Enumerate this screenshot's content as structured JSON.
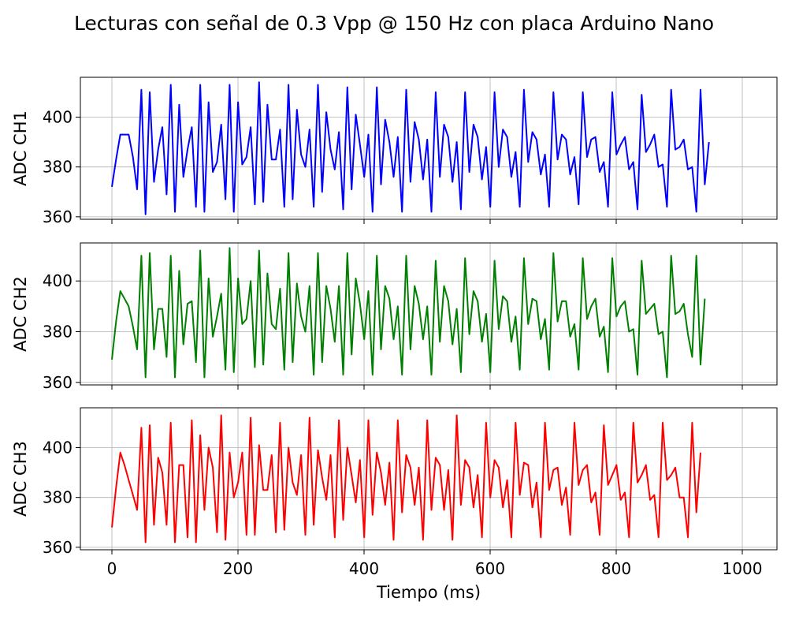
{
  "title": "Lecturas con señal de 0.3 Vpp @ 150 Hz con placa Arduino Nano",
  "chart_data": {
    "type": "line",
    "title": "Lecturas con señal de 0.3 Vpp @ 150 Hz con placa Arduino Nano",
    "xlabel": "Tiempo (ms)",
    "xlim": [
      -50,
      1055
    ],
    "xticks": [
      0,
      200,
      400,
      600,
      800,
      1000
    ],
    "x_step_ms": 6.67,
    "grid": true,
    "panels": [
      {
        "ylabel": "ADC CH1",
        "color": "#0000ff",
        "ylim": [
          359,
          416
        ],
        "yticks": [
          360,
          380,
          400
        ],
        "values": [
          372,
          383,
          393,
          393,
          393,
          384,
          371,
          411,
          361,
          410,
          374,
          387,
          396,
          369,
          413,
          362,
          405,
          376,
          387,
          396,
          364,
          413,
          362,
          406,
          378,
          382,
          397,
          367,
          413,
          362,
          406,
          381,
          384,
          396,
          365,
          414,
          366,
          405,
          383,
          383,
          395,
          364,
          413,
          367,
          403,
          385,
          380,
          395,
          364,
          413,
          370,
          402,
          387,
          379,
          394,
          363,
          412,
          371,
          401,
          389,
          376,
          393,
          362,
          412,
          373,
          399,
          390,
          376,
          392,
          362,
          411,
          374,
          398,
          391,
          375,
          391,
          362,
          410,
          376,
          397,
          392,
          374,
          390,
          363,
          410,
          378,
          397,
          392,
          375,
          388,
          364,
          410,
          380,
          395,
          392,
          376,
          386,
          364,
          411,
          382,
          394,
          391,
          377,
          385,
          364,
          410,
          383,
          393,
          391,
          377,
          384,
          365,
          410,
          384,
          391,
          392,
          378,
          382,
          364,
          410,
          385,
          389,
          392,
          379,
          382,
          363,
          409,
          386,
          389,
          393,
          380,
          381,
          364,
          411,
          387,
          388,
          391,
          379,
          380,
          362,
          411,
          373,
          390
        ]
      },
      {
        "ylabel": "ADC CH2",
        "color": "#008000",
        "ylim": [
          359,
          415
        ],
        "yticks": [
          360,
          380,
          400
        ],
        "values": [
          369,
          384,
          396,
          393,
          390,
          382,
          373,
          410,
          362,
          411,
          373,
          389,
          389,
          370,
          410,
          362,
          404,
          375,
          391,
          392,
          368,
          412,
          362,
          401,
          378,
          386,
          395,
          365,
          413,
          364,
          401,
          383,
          385,
          400,
          366,
          412,
          367,
          403,
          383,
          381,
          397,
          365,
          411,
          368,
          399,
          386,
          380,
          398,
          363,
          411,
          368,
          398,
          389,
          376,
          398,
          363,
          411,
          371,
          401,
          391,
          377,
          396,
          363,
          410,
          373,
          398,
          393,
          377,
          390,
          363,
          410,
          373,
          398,
          391,
          377,
          390,
          363,
          408,
          376,
          398,
          392,
          375,
          389,
          364,
          409,
          379,
          396,
          392,
          376,
          387,
          364,
          408,
          381,
          394,
          392,
          376,
          386,
          365,
          409,
          383,
          393,
          392,
          377,
          385,
          365,
          411,
          384,
          392,
          392,
          378,
          383,
          365,
          409,
          385,
          390,
          393,
          378,
          382,
          364,
          409,
          386,
          390,
          392,
          380,
          381,
          363,
          408,
          387,
          389,
          391,
          379,
          380,
          362,
          410,
          387,
          388,
          391,
          379,
          370,
          410,
          367,
          393
        ]
      },
      {
        "ylabel": "ADC CH3",
        "color": "#ff0000",
        "ylim": [
          359,
          416
        ],
        "yticks": [
          360,
          380,
          400
        ],
        "values": [
          368,
          384,
          398,
          393,
          387,
          381,
          375,
          408,
          362,
          409,
          369,
          396,
          390,
          369,
          410,
          362,
          393,
          393,
          364,
          411,
          362,
          405,
          375,
          400,
          392,
          366,
          413,
          363,
          398,
          380,
          386,
          398,
          365,
          412,
          365,
          401,
          383,
          383,
          397,
          366,
          410,
          367,
          400,
          386,
          381,
          397,
          365,
          412,
          369,
          399,
          388,
          379,
          397,
          364,
          411,
          371,
          400,
          389,
          378,
          395,
          364,
          411,
          373,
          398,
          390,
          377,
          394,
          363,
          411,
          374,
          397,
          392,
          377,
          392,
          363,
          411,
          375,
          396,
          393,
          375,
          391,
          363,
          413,
          377,
          395,
          392,
          376,
          389,
          364,
          410,
          380,
          395,
          392,
          376,
          387,
          364,
          410,
          381,
          394,
          393,
          376,
          386,
          364,
          410,
          383,
          391,
          392,
          377,
          384,
          365,
          410,
          385,
          391,
          393,
          378,
          382,
          365,
          409,
          385,
          389,
          393,
          379,
          382,
          364,
          410,
          386,
          389,
          393,
          379,
          381,
          364,
          410,
          387,
          389,
          392,
          380,
          380,
          364,
          410,
          374,
          398
        ]
      }
    ]
  }
}
